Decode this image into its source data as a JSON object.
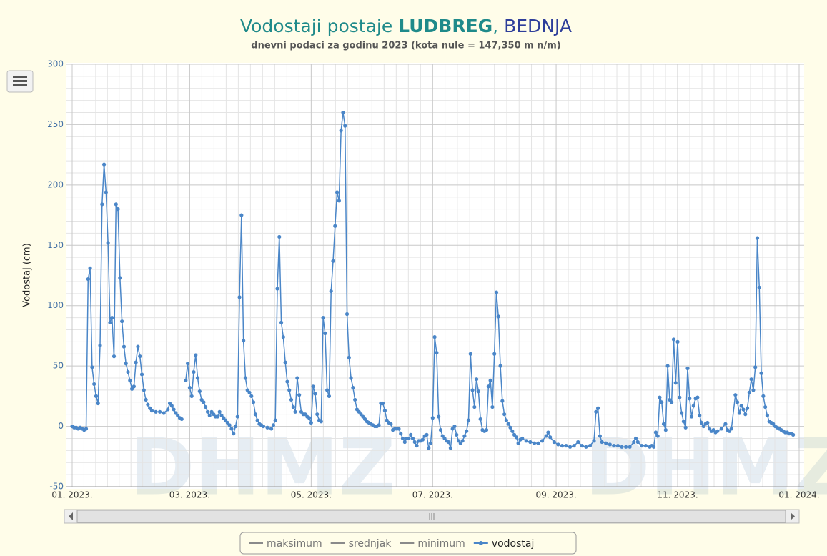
{
  "chart_data": {
    "type": "line",
    "title": [
      "Vodostaji postaje ",
      "LUDBREG",
      ", ",
      "BEDNJA"
    ],
    "subtitle": "dnevni podaci za godinu 2023 (kota nule = 147,350 m n/m)",
    "ylabel": "Vodostaj (cm)",
    "watermark": "DHMZ",
    "xlim": [
      0,
      365
    ],
    "xticks": [
      {
        "value": 0,
        "label": "01. 2023."
      },
      {
        "value": 59,
        "label": "03. 2023."
      },
      {
        "value": 120,
        "label": "05. 2023."
      },
      {
        "value": 181,
        "label": "07. 2023."
      },
      {
        "value": 243,
        "label": "09. 2023."
      },
      {
        "value": 304,
        "label": "11. 2023."
      },
      {
        "value": 365,
        "label": "01. 2024."
      }
    ],
    "ylim": [
      -50,
      300
    ],
    "yticks": [
      -50,
      0,
      50,
      100,
      150,
      200,
      250,
      300
    ],
    "grid": true,
    "minor_grid": true,
    "x": [
      0,
      1,
      2,
      3,
      4,
      5,
      6,
      7,
      8,
      9,
      10,
      11,
      12,
      13,
      14,
      15,
      16,
      17,
      18,
      19,
      20,
      21,
      22,
      23,
      24,
      25,
      26,
      27,
      28,
      29,
      30,
      31,
      32,
      33,
      34,
      35,
      36,
      37,
      38,
      39,
      40,
      42,
      44,
      46,
      48,
      49,
      50,
      51,
      52,
      53,
      54,
      55,
      56,
      57,
      58,
      59,
      60,
      61,
      62,
      63,
      64,
      65,
      66,
      67,
      68,
      69,
      70,
      71,
      72,
      73,
      74,
      75,
      76,
      77,
      78,
      79,
      80,
      81,
      82,
      83,
      84,
      85,
      86,
      87,
      88,
      89,
      90,
      91,
      92,
      93,
      94,
      95,
      96,
      98,
      100,
      101,
      102,
      103,
      104,
      105,
      106,
      107,
      108,
      109,
      110,
      111,
      112,
      113,
      114,
      115,
      116,
      117,
      118,
      119,
      120,
      121,
      122,
      123,
      124,
      125,
      126,
      127,
      128,
      129,
      130,
      131,
      132,
      133,
      134,
      135,
      136,
      137,
      138,
      139,
      140,
      141,
      142,
      143,
      144,
      145,
      146,
      147,
      148,
      149,
      150,
      151,
      152,
      153,
      154,
      155,
      156,
      157,
      158,
      159,
      160,
      161,
      162,
      163,
      164,
      165,
      166,
      167,
      168,
      169,
      170,
      171,
      172,
      173,
      174,
      175,
      176,
      177,
      178,
      179,
      180,
      181,
      182,
      183,
      184,
      185,
      186,
      187,
      188,
      189,
      190,
      191,
      192,
      193,
      194,
      195,
      196,
      197,
      198,
      199,
      200,
      201,
      202,
      203,
      204,
      205,
      206,
      207,
      208,
      209,
      210,
      211,
      212,
      213,
      214,
      215,
      216,
      217,
      218,
      219,
      220,
      221,
      222,
      223,
      224,
      225,
      226,
      228,
      230,
      232,
      234,
      236,
      238,
      239,
      240,
      242,
      244,
      246,
      248,
      250,
      252,
      254,
      256,
      258,
      260,
      262,
      263,
      264,
      265,
      266,
      268,
      270,
      272,
      274,
      276,
      278,
      280,
      282,
      283,
      284,
      286,
      288,
      290,
      291,
      292,
      293,
      294,
      295,
      296,
      297,
      298,
      299,
      300,
      301,
      302,
      303,
      304,
      305,
      306,
      307,
      308,
      309,
      310,
      311,
      312,
      313,
      314,
      315,
      316,
      317,
      318,
      319,
      320,
      321,
      322,
      323,
      324,
      326,
      328,
      329,
      330,
      331,
      333,
      334,
      335,
      336,
      337,
      338,
      339,
      340,
      341,
      342,
      343,
      344,
      345,
      346,
      347,
      348,
      349,
      350,
      351,
      352,
      353,
      354,
      355,
      356,
      357,
      358,
      359,
      360,
      361,
      362
    ],
    "series": [
      {
        "name": "vodostaj",
        "color": "#4a86c8",
        "values": [
          0,
          -1,
          -1,
          -2,
          -1,
          -2,
          -3,
          -2,
          122,
          131,
          49,
          35,
          25,
          19,
          67,
          184,
          217,
          194,
          152,
          86,
          90,
          58,
          184,
          180,
          123,
          87,
          66,
          52,
          45,
          38,
          31,
          33,
          53,
          66,
          58,
          43,
          30,
          22,
          18,
          15,
          13,
          12,
          12,
          11,
          14,
          19,
          17,
          14,
          11,
          9,
          7,
          6,
          null,
          38,
          52,
          32,
          25,
          45,
          59,
          40,
          29,
          22,
          20,
          16,
          12,
          9,
          12,
          10,
          8,
          8,
          12,
          9,
          7,
          5,
          3,
          1,
          -2,
          -6,
          0,
          8,
          107,
          175,
          71,
          40,
          30,
          28,
          25,
          20,
          10,
          5,
          2,
          1,
          0,
          -1,
          -2,
          1,
          5,
          114,
          157,
          86,
          74,
          53,
          37,
          30,
          22,
          16,
          12,
          40,
          26,
          12,
          10,
          10,
          8,
          7,
          3,
          33,
          27,
          10,
          5,
          4,
          90,
          77,
          30,
          25,
          112,
          137,
          166,
          194,
          187,
          245,
          260,
          249,
          93,
          57,
          40,
          32,
          22,
          14,
          12,
          10,
          8,
          6,
          4,
          3,
          2,
          1,
          0,
          0,
          1,
          19,
          19,
          13,
          5,
          3,
          2,
          -3,
          -2,
          -2,
          -2,
          -6,
          -10,
          -13,
          -10,
          -10,
          -7,
          -10,
          -13,
          -16,
          -12,
          -12,
          -11,
          -8,
          -7,
          -18,
          -14,
          7,
          74,
          61,
          8,
          -3,
          -8,
          -10,
          -12,
          -13,
          -18,
          -2,
          0,
          -7,
          -12,
          -14,
          -12,
          -8,
          -4,
          5,
          60,
          30,
          16,
          39,
          29,
          6,
          -3,
          -4,
          -3,
          33,
          38,
          16,
          60,
          111,
          91,
          50,
          21,
          10,
          5,
          2,
          -1,
          -4,
          -7,
          -9,
          -14,
          -11,
          -10,
          -12,
          -13,
          -14,
          -14,
          -12,
          -8,
          -5,
          -9,
          -13,
          -15,
          -16,
          -16,
          -17,
          -16,
          -13,
          -16,
          -17,
          -16,
          -12,
          12,
          15,
          -8,
          -13,
          -14,
          -15,
          -16,
          -16,
          -17,
          -17,
          -17,
          -13,
          -10,
          -13,
          -16,
          -16,
          -17,
          -16,
          -17,
          -5,
          -8,
          24,
          20,
          2,
          -3,
          50,
          22,
          20,
          72,
          36,
          70,
          24,
          11,
          4,
          -1,
          48,
          23,
          8,
          17,
          23,
          24,
          9,
          3,
          0,
          2,
          3,
          -2,
          -4,
          -3,
          -5,
          -4,
          -2,
          2,
          -3,
          -4,
          -2,
          26,
          20,
          11,
          17,
          14,
          10,
          15,
          28,
          39,
          30,
          49,
          156,
          115,
          44,
          25,
          16,
          9,
          4,
          3,
          2,
          0,
          -1,
          -2,
          -3,
          -4,
          -5,
          -5,
          -6,
          -6,
          -7
        ]
      }
    ],
    "legend": [
      {
        "name": "maksimum",
        "color": "#8a8a8a"
      },
      {
        "name": "srednjak",
        "color": "#8a8a8a"
      },
      {
        "name": "minimum",
        "color": "#8a8a8a"
      },
      {
        "name": "vodostaj",
        "color": "#4a86c8"
      }
    ]
  }
}
